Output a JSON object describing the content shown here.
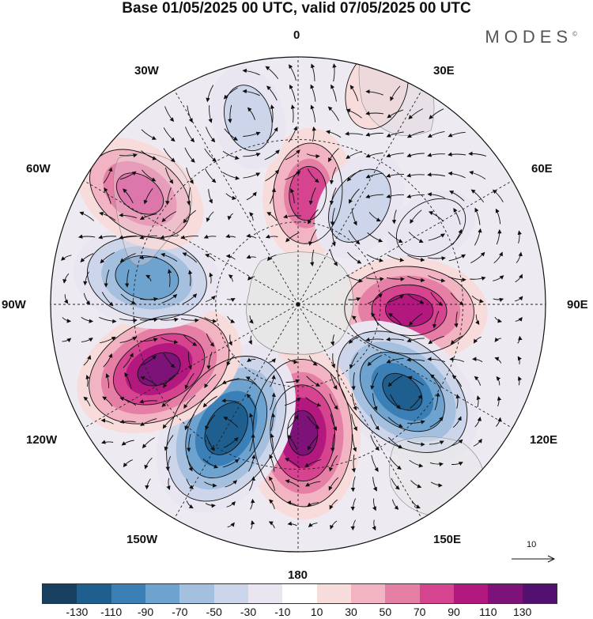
{
  "title": "Base 01/05/2025 00 UTC, valid 07/05/2025 00 UTC",
  "brand": "MODES",
  "brand_mark": "©",
  "lon_labels": {
    "n0": "0",
    "n30e": "30E",
    "n60e": "60E",
    "n90e": "90E",
    "n120e": "120E",
    "n150e": "150E",
    "n180": "180",
    "n150w": "150W",
    "n120w": "120W",
    "n90w": "90W",
    "n60w": "60W",
    "n30w": "30W"
  },
  "reference_vector": "10",
  "colorbar": {
    "colors": [
      "#173f5f",
      "#1f5f8f",
      "#3a7fb5",
      "#6ea3cf",
      "#a5c0df",
      "#cdd5ea",
      "#e9e6f1",
      "#ffffff",
      "#f8dcdc",
      "#f2b4c2",
      "#e67fa6",
      "#d6438f",
      "#b3187f",
      "#7d1379",
      "#521070"
    ],
    "ticks": [
      "-130",
      "-110",
      "-90",
      "-70",
      "-50",
      "-30",
      "-10",
      "10",
      "30",
      "50",
      "70",
      "90",
      "110",
      "130"
    ]
  },
  "map_data": {
    "anomalies": [
      {
        "lon": 5,
        "r": 0.45,
        "value": 70
      },
      {
        "lon": 32,
        "r": 0.47,
        "value": -50
      },
      {
        "lon": 60,
        "r": 0.62,
        "value": -30
      },
      {
        "lon": 93,
        "r": 0.45,
        "value": 100
      },
      {
        "lon": 130,
        "r": 0.55,
        "value": -120
      },
      {
        "lon": 178,
        "r": 0.52,
        "value": 120
      },
      {
        "lon": -150,
        "r": 0.58,
        "value": -130
      },
      {
        "lon": -115,
        "r": 0.62,
        "value": 120
      },
      {
        "lon": -80,
        "r": 0.62,
        "value": -90
      },
      {
        "lon": -55,
        "r": 0.78,
        "value": 80
      },
      {
        "lon": -15,
        "r": 0.78,
        "value": -40
      },
      {
        "lon": 20,
        "r": 0.93,
        "value": 20
      }
    ]
  }
}
